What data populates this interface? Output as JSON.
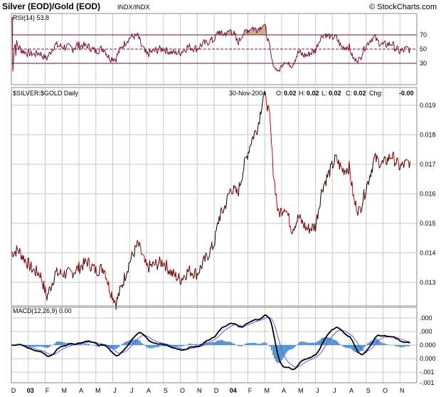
{
  "header": {
    "title": "Silver (EOD)/Gold (EOD)",
    "exchange": "INDX/INDX",
    "watermark": "© StockCharts.com"
  },
  "chart_data": [
    {
      "type": "line",
      "panel": "rsi",
      "label": "RSI(14) 53.8",
      "ylim": [
        0,
        100
      ],
      "y_ticks": [
        "70",
        "50",
        "30"
      ],
      "y_tick_values": [
        70,
        50,
        30
      ],
      "reference_lines": [
        70,
        50,
        30
      ],
      "overbought_fill": true,
      "colors": {
        "line": "#7a1030",
        "fill": "#c9b092"
      },
      "grid": true
    },
    {
      "type": "line",
      "panel": "price",
      "label": "$SILVER:$GOLD Daily",
      "quote": {
        "date": "30-Nov-2004",
        "o": "0.02",
        "h": "0.02",
        "l": "0.02",
        "c": "0.02",
        "chg": "-0.00"
      },
      "quote_labels": {
        "o": "O:",
        "h": "H:",
        "l": "L:",
        "c": "C:",
        "chg": "Chg:"
      },
      "ylim": [
        0.0122,
        0.0196
      ],
      "y_ticks": [
        "0.019",
        "0.018",
        "0.017",
        "0.016",
        "0.015",
        "0.014",
        "0.013"
      ],
      "y_tick_values": [
        0.019,
        0.018,
        0.017,
        0.016,
        0.015,
        0.014,
        0.013
      ],
      "x_range": [
        0,
        24
      ],
      "series": [
        {
          "x": [
            0,
            0.4,
            0.9,
            1.3,
            1.7,
            2.1,
            2.6,
            3.0,
            3.5,
            4.0,
            4.5,
            5.0,
            5.5,
            5.8,
            6.2,
            6.6,
            7.0,
            7.5,
            8.0,
            8.5,
            9.0,
            9.5,
            10.0,
            10.5,
            11.0,
            11.5,
            12.0,
            12.3,
            12.6,
            13.0,
            13.4,
            13.8,
            14.2,
            14.6,
            14.9,
            15.1,
            15.3,
            15.5,
            15.8,
            16.2,
            16.6,
            17.0,
            17.5,
            18.0,
            18.4,
            18.8,
            19.2,
            19.6,
            20.0,
            20.3,
            20.6,
            21.0,
            21.5,
            22.0,
            22.5,
            23.0,
            23.6
          ],
          "y": [
            0.014,
            0.0141,
            0.0137,
            0.0134,
            0.0133,
            0.0125,
            0.0133,
            0.0133,
            0.0133,
            0.0135,
            0.0137,
            0.0134,
            0.0135,
            0.0128,
            0.0123,
            0.013,
            0.0137,
            0.0143,
            0.0135,
            0.0136,
            0.0137,
            0.0133,
            0.0131,
            0.0134,
            0.0133,
            0.0138,
            0.0143,
            0.0152,
            0.0155,
            0.0162,
            0.016,
            0.017,
            0.0178,
            0.0183,
            0.0193,
            0.0192,
            0.0185,
            0.0168,
            0.0153,
            0.0156,
            0.0148,
            0.0152,
            0.0148,
            0.0149,
            0.0162,
            0.0167,
            0.0172,
            0.0168,
            0.0169,
            0.0157,
            0.0154,
            0.0162,
            0.0172,
            0.017,
            0.0173,
            0.0169,
            0.0171
          ]
        }
      ],
      "colors": {
        "up": "#000000",
        "down": "#cc0000"
      },
      "grid": true
    },
    {
      "type": "line",
      "panel": "macd",
      "label": "MACD(12,26,9) 0.00",
      "ylim": [
        -0.00125,
        0.00125
      ],
      "y_ticks": [
        ".000",
        ".000",
        "0.000",
        "0.000",
        "-.001",
        "-.001"
      ],
      "y_tick_values": [
        0.0009,
        0.00045,
        0,
        -0.00045,
        -0.0009,
        -0.00125
      ],
      "series_colors": {
        "macd": "#000000",
        "signal": "#5858ff",
        "histogram": "#3a86cc"
      },
      "grid": true
    }
  ],
  "x_axis": {
    "ticks": [
      "D",
      "03",
      "F",
      "M",
      "A",
      "M",
      "J",
      "J",
      "A",
      "S",
      "O",
      "N",
      "D",
      "04",
      "F",
      "M",
      "A",
      "M",
      "J",
      "J",
      "A",
      "S",
      "O",
      "N"
    ],
    "tick_bold": [
      false,
      true,
      false,
      false,
      false,
      false,
      false,
      false,
      false,
      false,
      false,
      false,
      false,
      true,
      false,
      false,
      false,
      false,
      false,
      false,
      false,
      false,
      false,
      false
    ]
  }
}
